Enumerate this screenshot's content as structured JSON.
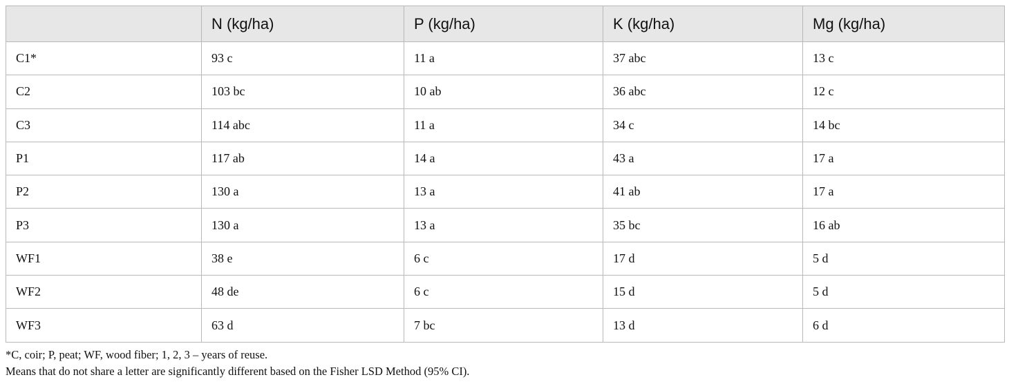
{
  "table": {
    "header": [
      "N (kg/ha)",
      "P (kg/ha)",
      "K (kg/ha)",
      "Mg (kg/ha)"
    ],
    "rows": [
      [
        "C1*",
        "93 c",
        "11 a",
        "37 abc",
        "13 c"
      ],
      [
        "C2",
        "103 bc",
        "10 ab",
        "36 abc",
        "12 c"
      ],
      [
        "C3",
        "114 abc",
        "11 a",
        "34 c",
        "14 bc"
      ],
      [
        "P1",
        "117 ab",
        "14 a",
        "43 a",
        "17 a"
      ],
      [
        "P2",
        "130 a",
        "13 a",
        "41 ab",
        "17 a"
      ],
      [
        "P3",
        "130 a",
        "13 a",
        "35 bc",
        "16 ab"
      ],
      [
        "WF1",
        "38 e",
        "6 c",
        "17 d",
        "5 d"
      ],
      [
        "WF2",
        "48 de",
        "6 c",
        "15 d",
        "5 d"
      ],
      [
        "WF3",
        "63 d",
        "7 bc",
        "13 d",
        "6 d"
      ]
    ]
  },
  "notes": [
    "*C, coir; P, peat; WF, wood fiber; 1, 2, 3 – years of reuse.",
    "Means that do not share a letter are significantly different based on the Fisher LSD Method (95% CI)."
  ]
}
